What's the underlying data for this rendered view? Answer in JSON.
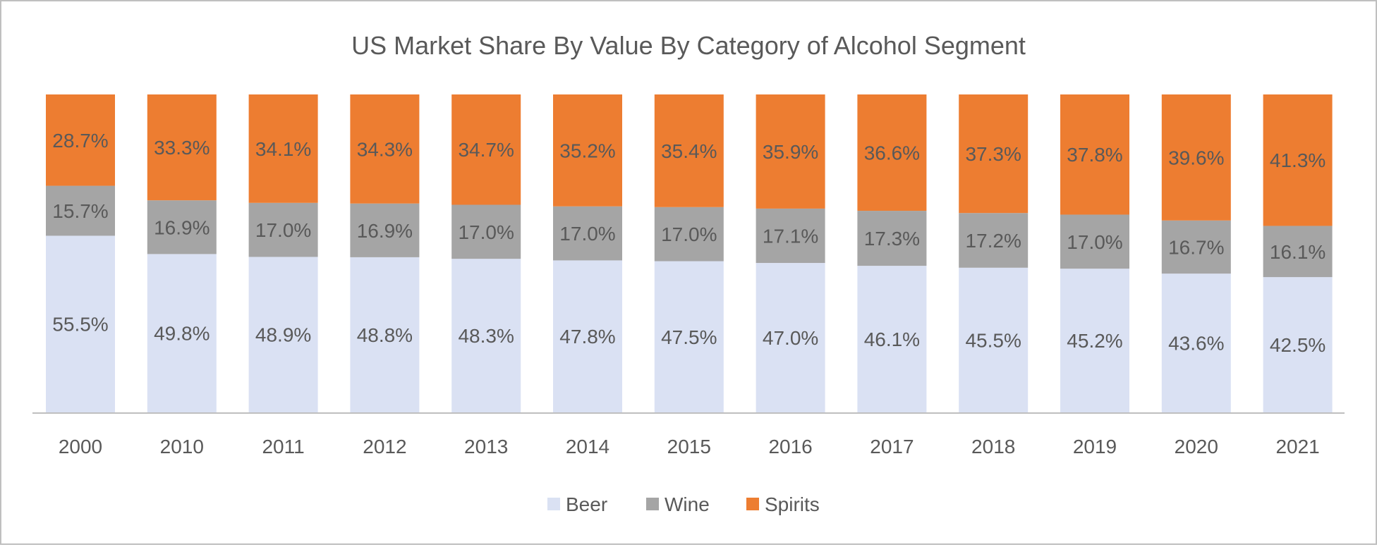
{
  "chart_data": {
    "type": "bar",
    "stacked": true,
    "title": "US Market Share By Value By Category of Alcohol Segment",
    "xlabel": "",
    "ylabel": "",
    "ylim": [
      0,
      100
    ],
    "grid": false,
    "legend_position": "bottom",
    "categories": [
      "2000",
      "2010",
      "2011",
      "2012",
      "2013",
      "2014",
      "2015",
      "2016",
      "2017",
      "2018",
      "2019",
      "2020",
      "2021"
    ],
    "series": [
      {
        "name": "Beer",
        "color": "#dae1f3",
        "values": [
          55.5,
          49.8,
          48.9,
          48.8,
          48.3,
          47.8,
          47.5,
          47.0,
          46.1,
          45.5,
          45.2,
          43.6,
          42.5
        ]
      },
      {
        "name": "Wine",
        "color": "#a5a5a5",
        "values": [
          15.7,
          16.9,
          17.0,
          16.9,
          17.0,
          17.0,
          17.0,
          17.1,
          17.3,
          17.2,
          17.0,
          16.7,
          16.1
        ]
      },
      {
        "name": "Spirits",
        "color": "#ed7d31",
        "values": [
          28.7,
          33.3,
          34.1,
          34.3,
          34.7,
          35.2,
          35.4,
          35.9,
          36.6,
          37.3,
          37.8,
          39.6,
          41.3
        ]
      }
    ],
    "data_labels": [
      [
        "55.5%",
        "49.8%",
        "48.9%",
        "48.8%",
        "48.3%",
        "47.8%",
        "47.5%",
        "47.0%",
        "46.1%",
        "45.5%",
        "45.2%",
        "43.6%",
        "42.5%"
      ],
      [
        "15.7%",
        "16.9%",
        "17.0%",
        "16.9%",
        "17.0%",
        "17.0%",
        "17.0%",
        "17.1%",
        "17.3%",
        "17.2%",
        "17.0%",
        "16.7%",
        "16.1%"
      ],
      [
        "28.7%",
        "33.3%",
        "34.1%",
        "34.3%",
        "34.7%",
        "35.2%",
        "35.4%",
        "35.9%",
        "36.6%",
        "37.3%",
        "37.8%",
        "39.6%",
        "41.3%"
      ]
    ]
  }
}
